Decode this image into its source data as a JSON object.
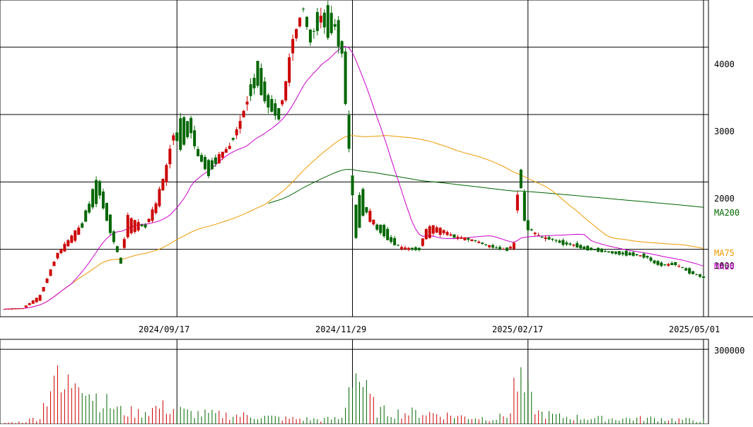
{
  "chart_data": [
    {
      "type": "candlestick",
      "title": "",
      "price_axis": {
        "ylim": [
          0,
          4700
        ],
        "ticks": [
          1000,
          2000,
          3000,
          4000
        ]
      },
      "x_axis": {
        "date_labels": [
          {
            "label": "2024/09/17",
            "index": 49
          },
          {
            "label": "2024/11/29",
            "index": 99
          },
          {
            "label": "2025/02/17",
            "index": 149
          },
          {
            "label": "2025/05/01",
            "index": 199
          }
        ]
      },
      "grid": true,
      "colors": {
        "up": "#cc0000",
        "down": "#006600",
        "ma20": "#cc00cc",
        "ma75": "#ee9900",
        "ma200": "#006600",
        "grid": "#000000"
      },
      "moving_averages": [
        {
          "name": "MA200",
          "color": "#006600"
        },
        {
          "name": "MA75",
          "color": "#ee9900"
        },
        {
          "name": "MA20",
          "color": "#cc00cc"
        }
      ],
      "ohlc_anchors": [
        [
          0,
          110,
          115
        ],
        [
          5,
          118,
          125
        ],
        [
          10,
          240,
          320
        ],
        [
          15,
          880,
          940
        ],
        [
          20,
          1150,
          1270
        ],
        [
          22,
          1350,
          1340
        ],
        [
          25,
          1900,
          1620
        ],
        [
          27,
          2050,
          1780
        ],
        [
          30,
          1500,
          1250
        ],
        [
          33,
          850,
          800
        ],
        [
          35,
          1200,
          1500
        ],
        [
          40,
          1380,
          1320
        ],
        [
          43,
          1500,
          1700
        ],
        [
          46,
          2000,
          2250
        ],
        [
          48,
          2600,
          2700
        ],
        [
          50,
          2900,
          2500
        ],
        [
          53,
          3000,
          2700
        ],
        [
          55,
          2550,
          2350
        ],
        [
          58,
          2300,
          2100
        ],
        [
          61,
          2300,
          2400
        ],
        [
          64,
          2500,
          2530
        ],
        [
          67,
          2800,
          2900
        ],
        [
          70,
          3400,
          3300
        ],
        [
          72,
          3850,
          3400
        ],
        [
          75,
          3200,
          3150
        ],
        [
          78,
          3050,
          2950
        ],
        [
          80,
          3200,
          3500
        ],
        [
          82,
          3950,
          4100
        ],
        [
          85,
          4600,
          4550
        ],
        [
          87,
          4200,
          4100
        ],
        [
          90,
          4500,
          4400
        ],
        [
          92,
          4600,
          4150
        ],
        [
          94,
          4450,
          4250
        ],
        [
          96,
          4100,
          3900
        ],
        [
          97,
          3850,
          3200
        ],
        [
          99,
          2100,
          1800
        ],
        [
          100,
          1700,
          1150
        ],
        [
          102,
          1850,
          1520
        ],
        [
          104,
          1450,
          1550
        ],
        [
          106,
          1350,
          1300
        ],
        [
          108,
          1350,
          1200
        ],
        [
          110,
          1200,
          1100
        ],
        [
          113,
          1030,
          1020
        ],
        [
          116,
          1020,
          1000
        ],
        [
          118,
          1000,
          1000
        ],
        [
          120,
          1150,
          1300
        ],
        [
          122,
          1250,
          1350
        ],
        [
          125,
          1250,
          1280
        ],
        [
          128,
          1200,
          1180
        ],
        [
          131,
          1170,
          1160
        ],
        [
          134,
          1140,
          1120
        ],
        [
          137,
          1080,
          1060
        ],
        [
          140,
          1030,
          1020
        ],
        [
          143,
          1000,
          990
        ],
        [
          145,
          1000,
          1100
        ],
        [
          146,
          1600,
          1800
        ],
        [
          147,
          2200,
          1900
        ],
        [
          148,
          1900,
          1400
        ],
        [
          149,
          1400,
          1300
        ],
        [
          151,
          1260,
          1230
        ],
        [
          153,
          1200,
          1170
        ],
        [
          156,
          1160,
          1140
        ],
        [
          159,
          1110,
          1080
        ],
        [
          162,
          1080,
          1060
        ],
        [
          165,
          1040,
          1000
        ],
        [
          168,
          1000,
          990
        ],
        [
          171,
          980,
          960
        ],
        [
          174,
          950,
          940
        ],
        [
          177,
          950,
          920
        ],
        [
          180,
          930,
          910
        ],
        [
          183,
          900,
          880
        ],
        [
          185,
          840,
          790
        ],
        [
          187,
          790,
          760
        ],
        [
          189,
          760,
          780
        ],
        [
          191,
          800,
          770
        ],
        [
          193,
          740,
          720
        ],
        [
          195,
          700,
          650
        ],
        [
          197,
          640,
          620
        ],
        [
          199,
          610,
          570
        ]
      ],
      "volume_axis": {
        "ylim": [
          0,
          340000
        ],
        "ticks": [
          300000
        ]
      },
      "volume_spikes": [
        [
          0,
          8000
        ],
        [
          5,
          12000
        ],
        [
          10,
          40000
        ],
        [
          14,
          280000
        ],
        [
          16,
          160000
        ],
        [
          19,
          230000
        ],
        [
          21,
          330000
        ],
        [
          24,
          180000
        ],
        [
          28,
          120000
        ],
        [
          33,
          70000
        ],
        [
          38,
          60000
        ],
        [
          44,
          90000
        ],
        [
          48,
          80000
        ],
        [
          52,
          60000
        ],
        [
          60,
          50000
        ],
        [
          70,
          45000
        ],
        [
          80,
          30000
        ],
        [
          90,
          25000
        ],
        [
          96,
          30000
        ],
        [
          99,
          300000
        ],
        [
          101,
          250000
        ],
        [
          103,
          160000
        ],
        [
          106,
          70000
        ],
        [
          112,
          60000
        ],
        [
          120,
          60000
        ],
        [
          130,
          40000
        ],
        [
          140,
          30000
        ],
        [
          144,
          60000
        ],
        [
          145,
          200000
        ],
        [
          146,
          230000
        ],
        [
          147,
          200000
        ],
        [
          149,
          150000
        ],
        [
          152,
          60000
        ],
        [
          158,
          40000
        ],
        [
          170,
          30000
        ],
        [
          185,
          30000
        ],
        [
          199,
          20000
        ]
      ],
      "panel_labels": {
        "price": "",
        "volume": ""
      }
    }
  ],
  "legend": {
    "ma200": "MA200",
    "ma75": "MA75",
    "ma20": "MA20"
  },
  "price_ticks": [
    "4000",
    "3000",
    "2000",
    "1000"
  ],
  "volume_tick": "300000"
}
